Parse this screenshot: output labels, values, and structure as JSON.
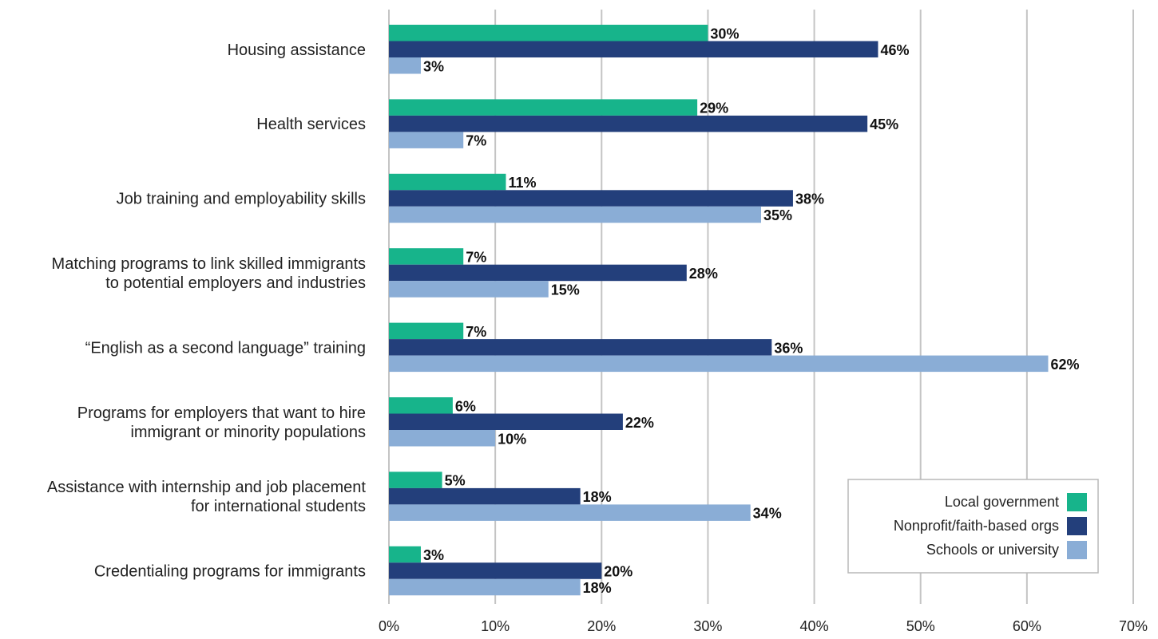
{
  "chart_data": {
    "type": "bar",
    "orientation": "horizontal",
    "categories": [
      [
        "Housing assistance"
      ],
      [
        "Health services"
      ],
      [
        "Job training and employability skills"
      ],
      [
        "Matching programs to link skilled immigrants",
        "to potential employers and industries"
      ],
      [
        "“English as a second language” training"
      ],
      [
        "Programs for employers that want to hire",
        "immigrant or minority populations"
      ],
      [
        "Assistance with internship and job placement",
        "for international students"
      ],
      [
        "Credentialing programs for immigrants"
      ]
    ],
    "series": [
      {
        "name": "Local government",
        "color": "#17b48b",
        "values": [
          30,
          29,
          11,
          7,
          7,
          6,
          5,
          3
        ]
      },
      {
        "name": "Nonprofit/faith-based orgs",
        "color": "#233f7b",
        "values": [
          46,
          45,
          38,
          28,
          36,
          22,
          18,
          20
        ]
      },
      {
        "name": "Schools or university",
        "color": "#8aadd6",
        "values": [
          3,
          7,
          35,
          15,
          62,
          10,
          34,
          18
        ]
      }
    ],
    "data_labels": [
      [
        "30%",
        "29%",
        "11%",
        "7%",
        "7%",
        "6%",
        "5%",
        "3%"
      ],
      [
        "46%",
        "45%",
        "38%",
        "28%",
        "36%",
        "22%",
        "18%",
        "20%"
      ],
      [
        "3%",
        "7%",
        "35%",
        "15%",
        "62%",
        "10%",
        "34%",
        "18%"
      ]
    ],
    "xlim": [
      0,
      70
    ],
    "xticks": [
      0,
      10,
      20,
      30,
      40,
      50,
      60,
      70
    ],
    "xtick_labels": [
      "0%",
      "10%",
      "20%",
      "30%",
      "40%",
      "50%",
      "60%",
      "70%"
    ],
    "grid": "vertical",
    "legend_position": "bottom-right",
    "title": "",
    "xlabel": "",
    "ylabel": ""
  }
}
